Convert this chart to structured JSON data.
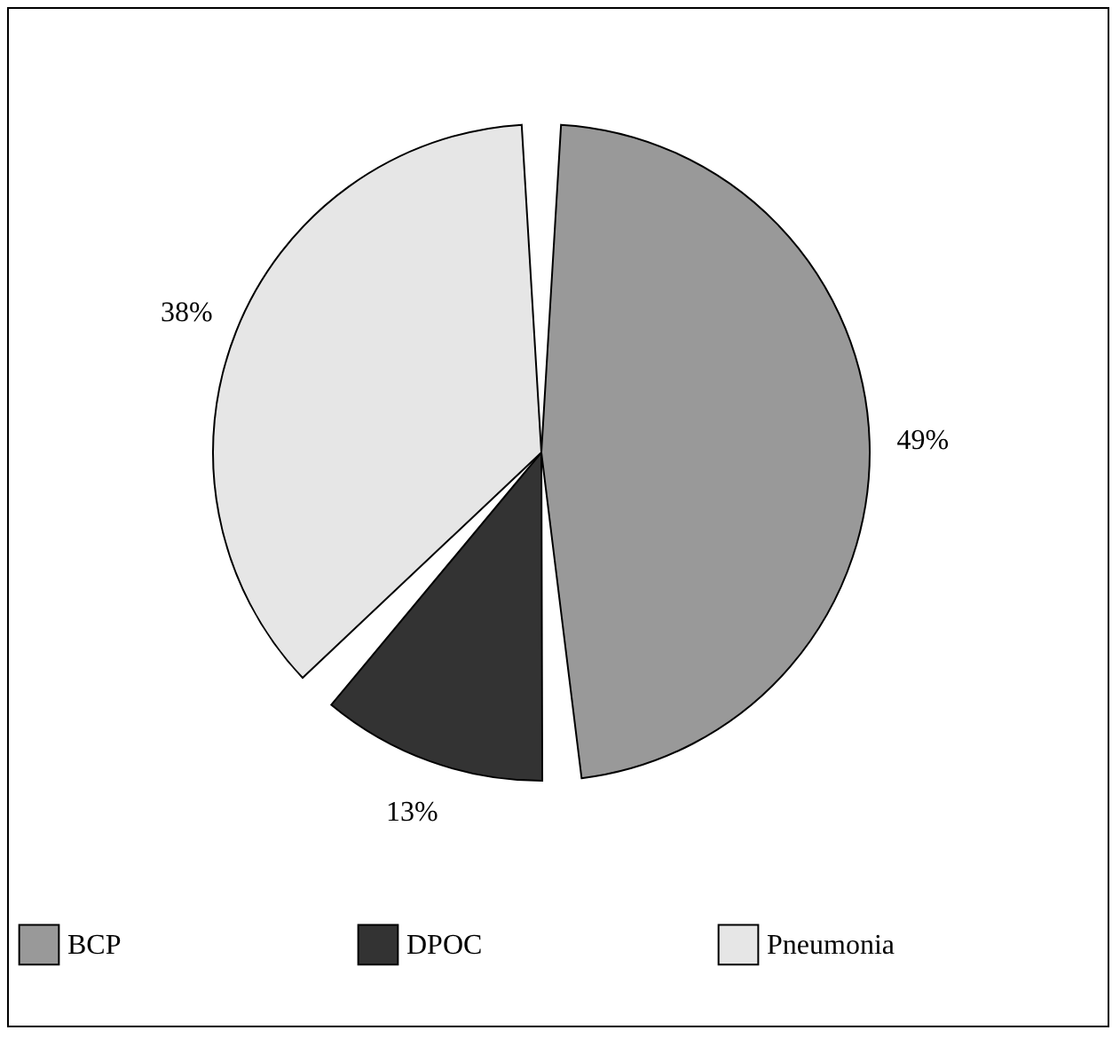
{
  "chart_data": {
    "type": "pie",
    "categories": [
      "BCP",
      "DPOC",
      "Pneumonia"
    ],
    "values": [
      49,
      13,
      38
    ],
    "colors": [
      "#999999",
      "#333333",
      "#e6e6e6"
    ],
    "value_labels": [
      "49%",
      "13%",
      "38%"
    ],
    "legend": "bottom"
  }
}
